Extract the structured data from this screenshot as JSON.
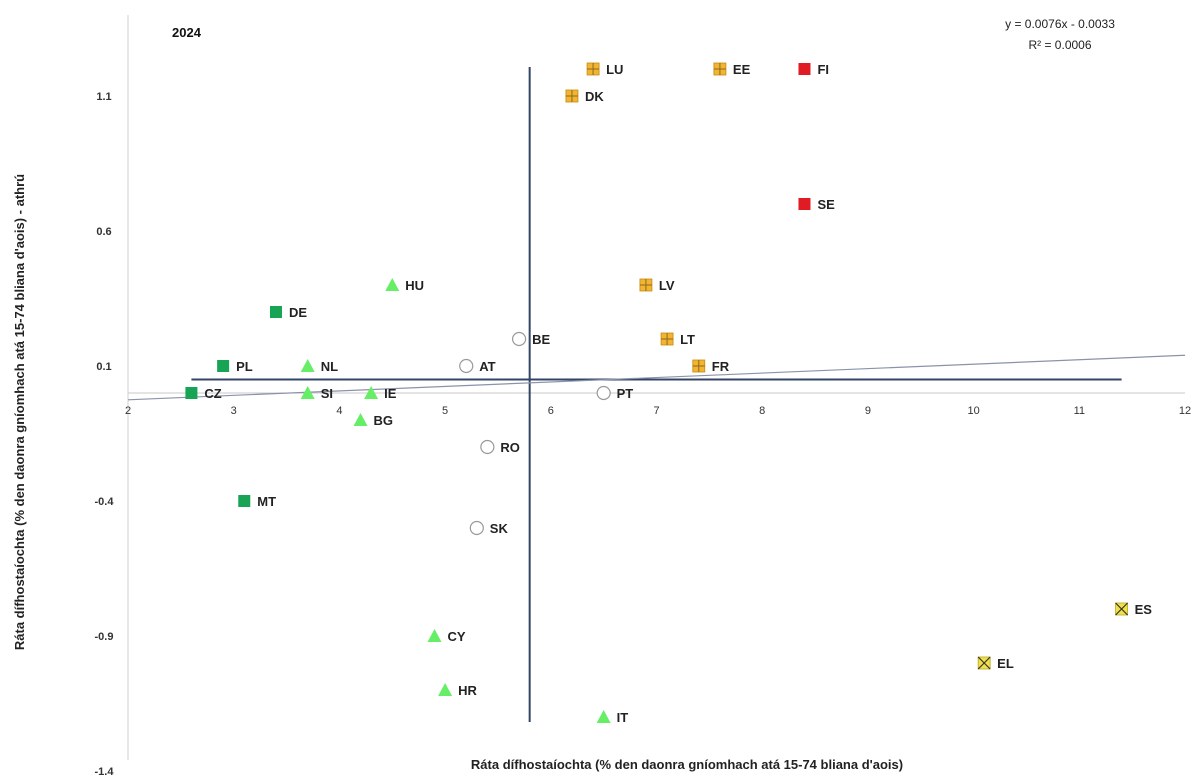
{
  "chart_data": {
    "type": "scatter",
    "title": "2024",
    "xlabel": "Ráta dífhostaíochta (% den daonra gníomhach atá 15-74 bliana d'aois)",
    "ylabel": "Ráta dífhostaíochta (% den daonra gníomhach atá 15-74 bliana d'aois) - athrú",
    "xlim": [
      2,
      12
    ],
    "ylim": [
      -1.4,
      1.35
    ],
    "x_ticks": [
      "2",
      "3",
      "4",
      "5",
      "6",
      "7",
      "8",
      "9",
      "10",
      "11",
      "12"
    ],
    "y_ticks": [
      "1.1",
      "0.6",
      "0.1",
      "-0.4",
      "-0.9",
      "-1.4"
    ],
    "grid": false,
    "trendline": {
      "equation": "y = 0.0076x - 0.0033",
      "r2": "R² = 0.0006",
      "slope": 0.0076,
      "intercept": -0.0033
    },
    "reference_lines": {
      "vertical_x": 5.8,
      "horizontal_y": 0.05
    },
    "colors": {
      "dark_green": "#17a555",
      "light_green": "#66ee66",
      "orange": "#f2b431",
      "red": "#e01b24",
      "yellow": "#f2e04a",
      "hollow": "#ffffff",
      "axis_line": "#334466"
    },
    "points": [
      {
        "label": "LU",
        "x": 6.4,
        "y": 1.2,
        "marker": "orange-square-cross"
      },
      {
        "label": "EE",
        "x": 7.6,
        "y": 1.2,
        "marker": "orange-square-cross"
      },
      {
        "label": "FI",
        "x": 8.4,
        "y": 1.2,
        "marker": "red-square"
      },
      {
        "label": "DK",
        "x": 6.2,
        "y": 1.1,
        "marker": "orange-square-cross"
      },
      {
        "label": "SE",
        "x": 8.4,
        "y": 0.7,
        "marker": "red-square"
      },
      {
        "label": "HU",
        "x": 4.5,
        "y": 0.4,
        "marker": "green-triangle"
      },
      {
        "label": "LV",
        "x": 6.9,
        "y": 0.4,
        "marker": "orange-square-cross"
      },
      {
        "label": "DE",
        "x": 3.4,
        "y": 0.3,
        "marker": "dark-green-square"
      },
      {
        "label": "BE",
        "x": 5.7,
        "y": 0.2,
        "marker": "hollow-circle"
      },
      {
        "label": "LT",
        "x": 7.1,
        "y": 0.2,
        "marker": "orange-square-cross"
      },
      {
        "label": "PL",
        "x": 2.9,
        "y": 0.1,
        "marker": "dark-green-square"
      },
      {
        "label": "NL",
        "x": 3.7,
        "y": 0.1,
        "marker": "green-triangle"
      },
      {
        "label": "AT",
        "x": 5.2,
        "y": 0.1,
        "marker": "hollow-circle"
      },
      {
        "label": "FR",
        "x": 7.4,
        "y": 0.1,
        "marker": "orange-square-cross"
      },
      {
        "label": "CZ",
        "x": 2.6,
        "y": 0.0,
        "marker": "dark-green-square"
      },
      {
        "label": "SI",
        "x": 3.7,
        "y": 0.0,
        "marker": "green-triangle"
      },
      {
        "label": "IE",
        "x": 4.3,
        "y": 0.0,
        "marker": "green-triangle"
      },
      {
        "label": "PT",
        "x": 6.5,
        "y": 0.0,
        "marker": "hollow-circle"
      },
      {
        "label": "BG",
        "x": 4.2,
        "y": -0.1,
        "marker": "green-triangle"
      },
      {
        "label": "RO",
        "x": 5.4,
        "y": -0.2,
        "marker": "hollow-circle"
      },
      {
        "label": "MT",
        "x": 3.1,
        "y": -0.4,
        "marker": "dark-green-square"
      },
      {
        "label": "SK",
        "x": 5.3,
        "y": -0.5,
        "marker": "hollow-circle"
      },
      {
        "label": "ES",
        "x": 11.4,
        "y": -0.8,
        "marker": "yellow-square-x"
      },
      {
        "label": "CY",
        "x": 4.9,
        "y": -0.9,
        "marker": "green-triangle"
      },
      {
        "label": "EL",
        "x": 10.1,
        "y": -1.0,
        "marker": "yellow-square-x"
      },
      {
        "label": "HR",
        "x": 5.0,
        "y": -1.1,
        "marker": "green-triangle"
      },
      {
        "label": "IT",
        "x": 6.5,
        "y": -1.2,
        "marker": "green-triangle"
      }
    ]
  }
}
